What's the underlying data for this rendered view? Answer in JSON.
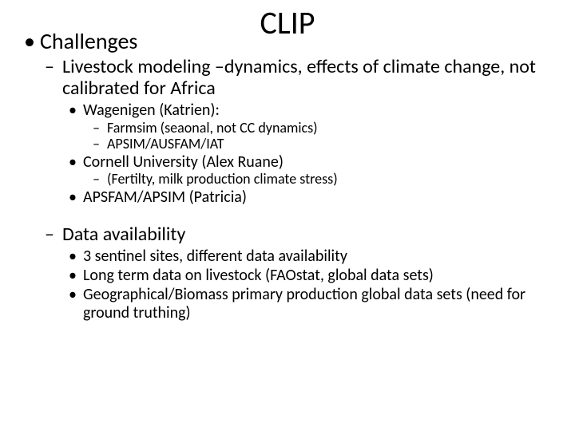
{
  "colors": {
    "background": "#ffffff",
    "text": "#000000"
  },
  "title": "CLIP",
  "challenges_label": "Challenges",
  "livestock": {
    "heading": "Livestock modeling –dynamics, effects of climate change, not calibrated for Africa",
    "wagenigen": {
      "label": "Wagenigen (Katrien):",
      "items": [
        " Farmsim (seaonal, not CC dynamics)",
        "APSIM/AUSFAM/IAT"
      ]
    },
    "cornell": {
      "label": "Cornell University  (Alex Ruane)",
      "items": [
        "(Fertilty, milk production climate stress)"
      ]
    },
    "apsfam": "APSFAM/APSIM (Patricia)"
  },
  "data_avail": {
    "heading": "Data availability",
    "items": [
      "3 sentinel sites, different data availability",
      "Long term data on livestock (FAOstat, global data sets)",
      "Geographical/Biomass primary production  global data sets (need for ground truthing)"
    ]
  }
}
